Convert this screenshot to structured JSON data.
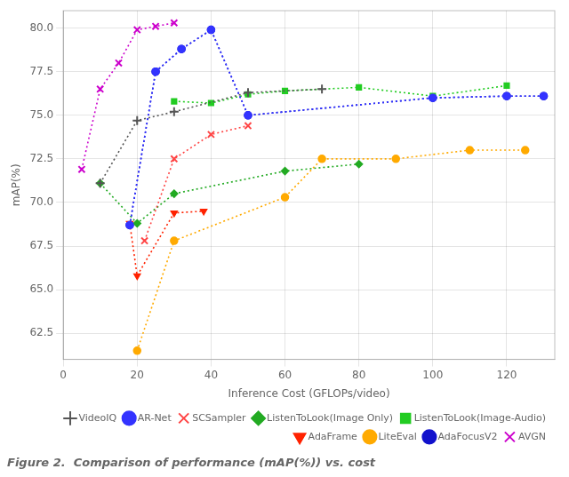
{
  "chart_data": {
    "type": "line",
    "xlabel": "Inference Cost (GFLOPs/video)",
    "ylabel": "mAP(%)",
    "caption": "Figure 2.  Comparison of performance (mAP(%)) vs. cost",
    "xlim": [
      0,
      133
    ],
    "ylim": [
      61.0,
      81.0
    ],
    "xticks": [
      0,
      20,
      40,
      60,
      80,
      100,
      120
    ],
    "yticks": [
      62.5,
      {
        "value": 65.0,
        "label": "65.0"
      },
      67.5,
      {
        "value": 70.0,
        "label": "70.0"
      },
      72.5,
      {
        "value": 75.0,
        "label": "75.0"
      },
      77.5,
      {
        "value": 80.0,
        "label": "80.0"
      }
    ],
    "grid": true,
    "legend": "lower right",
    "series": [
      {
        "name": "VideoIQ",
        "color": "#555555",
        "marker": "plus",
        "line_style": "dotted",
        "x": [
          10,
          20,
          30,
          50,
          70
        ],
        "values": [
          71.1,
          74.7,
          75.2,
          76.3,
          76.5
        ]
      },
      {
        "name": "AR-Net",
        "color": "#3333ff",
        "marker": "circle",
        "line_style": "dotted",
        "x": [
          18,
          25,
          32,
          40,
          50,
          100,
          120,
          130
        ],
        "values": [
          68.7,
          77.5,
          78.8,
          79.9,
          75.0,
          76.0,
          76.1,
          76.1
        ]
      },
      {
        "name": "SCSampler",
        "color": "#ff4444",
        "marker": "x",
        "line_style": "dotted",
        "x": [
          22,
          30,
          40,
          50
        ],
        "values": [
          67.8,
          72.5,
          73.9,
          74.4
        ]
      },
      {
        "name": "ListenToLook(Image Only)",
        "color": "#22aa22",
        "marker": "diamond",
        "line_style": "dotted",
        "x": [
          10,
          20,
          30,
          60,
          80
        ],
        "values": [
          71.1,
          68.8,
          70.5,
          71.8,
          72.2
        ]
      },
      {
        "name": "ListenToLook(Image-Audio)",
        "color": "#22cc22",
        "marker": "square",
        "line_style": "dotted",
        "x": [
          30,
          40,
          50,
          60,
          80,
          100,
          120
        ],
        "values": [
          75.8,
          75.7,
          76.2,
          76.4,
          76.6,
          76.1,
          76.7
        ]
      },
      {
        "name": "AdaFrame",
        "color": "#ff2200",
        "marker": "triangle_down",
        "line_style": "dotted",
        "x": [
          18,
          20,
          30,
          38
        ],
        "values": [
          68.8,
          65.8,
          69.4,
          69.5
        ]
      },
      {
        "name": "LiteEval",
        "color": "#ffaa00",
        "marker": "circle",
        "line_style": "dotted",
        "x": [
          20,
          30,
          60,
          70,
          90,
          110,
          125
        ],
        "values": [
          61.5,
          67.8,
          70.3,
          72.5,
          72.5,
          73.0,
          73.0
        ]
      },
      {
        "name": "AdaFocusV2",
        "color": "#1111cc",
        "marker": "circle",
        "line_style": "dotted",
        "x": [
          18,
          25,
          32,
          40,
          50,
          100,
          120,
          130
        ],
        "values": [
          68.7,
          77.5,
          78.8,
          79.9,
          75.0,
          76.0,
          76.1,
          76.1
        ]
      },
      {
        "name": "AVGN",
        "color": "#cc00cc",
        "marker": "x",
        "line_style": "dotted",
        "x": [
          5,
          10,
          15,
          20,
          25,
          30
        ],
        "values": [
          71.9,
          76.5,
          78.0,
          79.9,
          80.1,
          80.3
        ]
      }
    ]
  }
}
